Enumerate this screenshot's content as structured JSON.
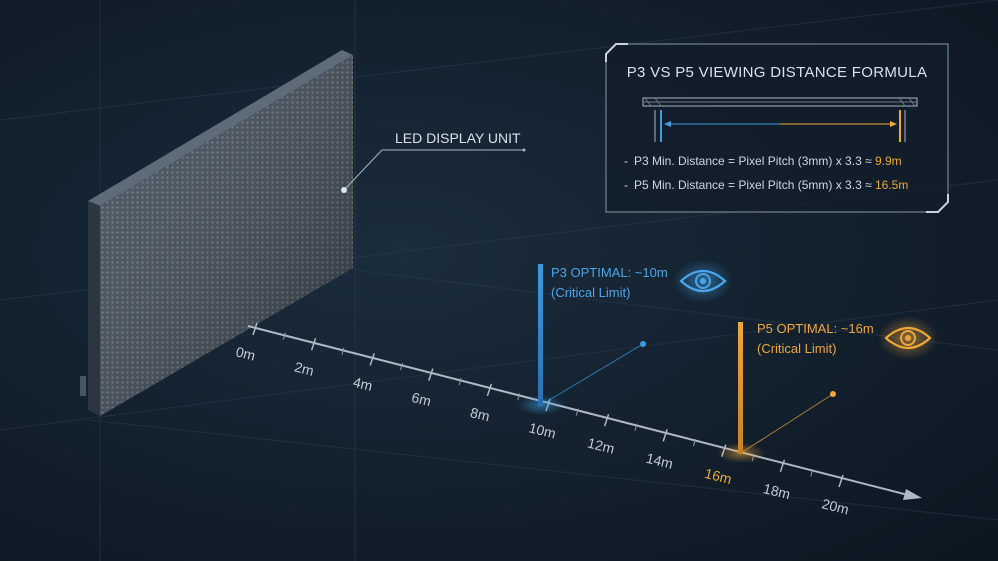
{
  "display": {
    "label": "LED DISPLAY UNIT"
  },
  "axis": {
    "ticks": [
      "0m",
      "2m",
      "4m",
      "6m",
      "8m",
      "10m",
      "12m",
      "14m",
      "16m",
      "18m",
      "20m"
    ]
  },
  "markers": {
    "p3": {
      "title": "P3 OPTIMAL: ~10m",
      "subtitle": "(Critical Limit)",
      "color": "#3d9be0"
    },
    "p5": {
      "title": "P5 OPTIMAL: ~16m",
      "subtitle": "(Critical Limit)",
      "color": "#f0a63a"
    }
  },
  "formula": {
    "title": "P3 VS P5 VIEWING DISTANCE FORMULA",
    "lines": [
      {
        "bullet": "-",
        "text": "P3 Min. Distance = Pixel Pitch (3mm) x 3.3 ≈ ",
        "result": "9.9m"
      },
      {
        "bullet": "-",
        "text": "P5 Min. Distance = Pixel Pitch (5mm) x 3.3 ≈ ",
        "result": "16.5m"
      }
    ]
  },
  "icons": [
    "eye-icon",
    "eye-icon"
  ],
  "colors": {
    "background": "#142230",
    "blue": "#3d9be0",
    "orange": "#f0a63a",
    "text": "#d9e1e8"
  }
}
